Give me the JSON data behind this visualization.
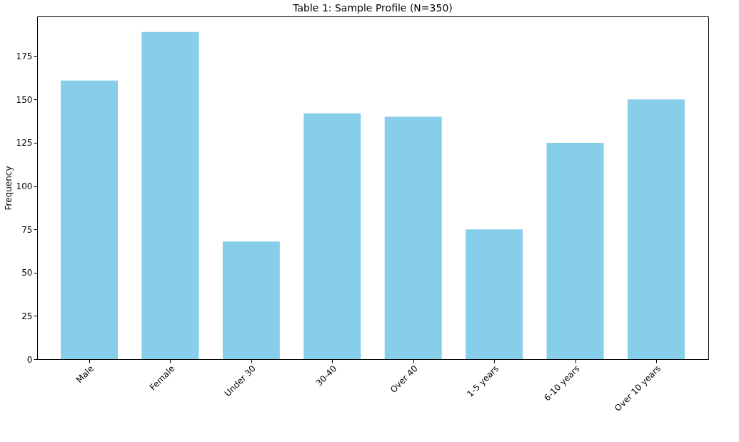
{
  "chart_data": {
    "type": "bar",
    "title": "Table 1: Sample Profile (N=350)",
    "ylabel": "Frequency",
    "categories": [
      "Male",
      "Female",
      "Under 30",
      "30-40",
      "Over 40",
      "1-5 years",
      "6-10 years",
      "Over 10 years"
    ],
    "values": [
      161,
      189,
      68,
      142,
      140,
      75,
      125,
      150
    ],
    "color": "#87ceeb",
    "ylim": [
      0,
      198
    ],
    "yticks": [
      0,
      25,
      50,
      75,
      100,
      125,
      150,
      175
    ],
    "grid": false
  }
}
